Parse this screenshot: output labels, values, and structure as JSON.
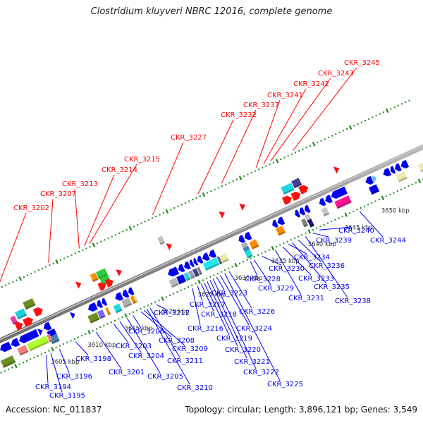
{
  "title": "Clostridium kluyveri NBRC 12016, complete genome",
  "footer": {
    "accession": "Accession: NC_011837",
    "summary": "Topology: circular; Length: 3,896,121 bp; Genes: 3,549"
  },
  "colors": {
    "axis": "#888888",
    "tick": "#1a8a1a",
    "forward_label": "#ff0000",
    "reverse_label": "#0000ee",
    "forward_gene": "#ff0000",
    "reverse_gene": "#0000ee"
  },
  "scale": {
    "unit": "kbp",
    "range_kbp": [
      3600,
      3656
    ],
    "major_ticks_kbp": [
      3605,
      3610,
      3615,
      3620,
      3625,
      3630,
      3635,
      3640,
      3645,
      3650
    ],
    "tick_labels": [
      "3605 kbp",
      "3610 kbp",
      "3615 kbp",
      "3620 kbp",
      "3625 kbp",
      "3630 kbp",
      "3635 kbp",
      "3640 kbp",
      "3645 kbp",
      "3650 kbp"
    ]
  },
  "forward_genes": [
    {
      "label": "CKR_3202",
      "pos_kbp": 3602.2
    },
    {
      "label": "CKR_3207",
      "pos_kbp": 3609.0
    },
    {
      "label": "CKR_3213",
      "pos_kbp": 3613.2
    },
    {
      "label": "CKR_3214",
      "pos_kbp": 3613.9
    },
    {
      "label": "CKR_3215",
      "pos_kbp": 3614.6
    },
    {
      "label": "CKR_3227",
      "pos_kbp": 3623.2
    },
    {
      "label": "CKR_3232",
      "pos_kbp": 3629.4
    },
    {
      "label": "CKR_3237",
      "pos_kbp": 3632.6
    },
    {
      "label": "CKR_3241",
      "pos_kbp": 3637.3
    },
    {
      "label": "CKR_3242",
      "pos_kbp": 3638.3
    },
    {
      "label": "CKR_3243",
      "pos_kbp": 3639.3
    },
    {
      "label": "CKR_3245",
      "pos_kbp": 3642.3
    }
  ],
  "reverse_genes": [
    {
      "label": "CKR_3194",
      "pos_kbp": 3604.0
    },
    {
      "label": "CKR_3195",
      "pos_kbp": 3604.6
    },
    {
      "label": "CKR_3196",
      "pos_kbp": 3605.8
    },
    {
      "label": "CKR_3198",
      "pos_kbp": 3608.0
    },
    {
      "label": "CKR_3201",
      "pos_kbp": 3610.8
    },
    {
      "label": "CKR_3203",
      "pos_kbp": 3613.2
    },
    {
      "label": "CKR_3204",
      "pos_kbp": 3614.0
    },
    {
      "label": "CKR_3205",
      "pos_kbp": 3615.0
    },
    {
      "label": "CKR_3206",
      "pos_kbp": 3615.8
    },
    {
      "label": "CKR_3208",
      "pos_kbp": 3616.9
    },
    {
      "label": "CKR_3209",
      "pos_kbp": 3617.3
    },
    {
      "label": "CKR_3210",
      "pos_kbp": 3617.7
    },
    {
      "label": "CKR_3211",
      "pos_kbp": 3618.1
    },
    {
      "label": "CKR_3212",
      "pos_kbp": 3619.0
    },
    {
      "label": "CKR_3216",
      "pos_kbp": 3623.9
    },
    {
      "label": "CKR_3217",
      "pos_kbp": 3624.6
    },
    {
      "label": "CKR_3218",
      "pos_kbp": 3625.1
    },
    {
      "label": "CKR_3219",
      "pos_kbp": 3625.5
    },
    {
      "label": "CKR_3220",
      "pos_kbp": 3625.9
    },
    {
      "label": "CKR_3221",
      "pos_kbp": 3626.3
    },
    {
      "label": "CKR_3222",
      "pos_kbp": 3626.7
    },
    {
      "label": "CKR_3223",
      "pos_kbp": 3627.2
    },
    {
      "label": "CKR_3224",
      "pos_kbp": 3627.7
    },
    {
      "label": "CKR_3225",
      "pos_kbp": 3628.3
    },
    {
      "label": "CKR_3226",
      "pos_kbp": 3628.9
    },
    {
      "label": "CKR_3228",
      "pos_kbp": 3631.8
    },
    {
      "label": "CKR_3229",
      "pos_kbp": 3632.3
    },
    {
      "label": "CKR_3230",
      "pos_kbp": 3633.4
    },
    {
      "label": "CKR_3231",
      "pos_kbp": 3635.2
    },
    {
      "label": "CKR_3233",
      "pos_kbp": 3636.2
    },
    {
      "label": "CKR_3234",
      "pos_kbp": 3637.0
    },
    {
      "label": "CKR_3235",
      "pos_kbp": 3637.5
    },
    {
      "label": "CKR_3236",
      "pos_kbp": 3638.3
    },
    {
      "label": "CKR_3238",
      "pos_kbp": 3639.3
    },
    {
      "label": "CKR_3239",
      "pos_kbp": 3640.3
    },
    {
      "label": "CKR_3240",
      "pos_kbp": 3641.2
    },
    {
      "label": "CKR_3244",
      "pos_kbp": 3646.7
    }
  ]
}
